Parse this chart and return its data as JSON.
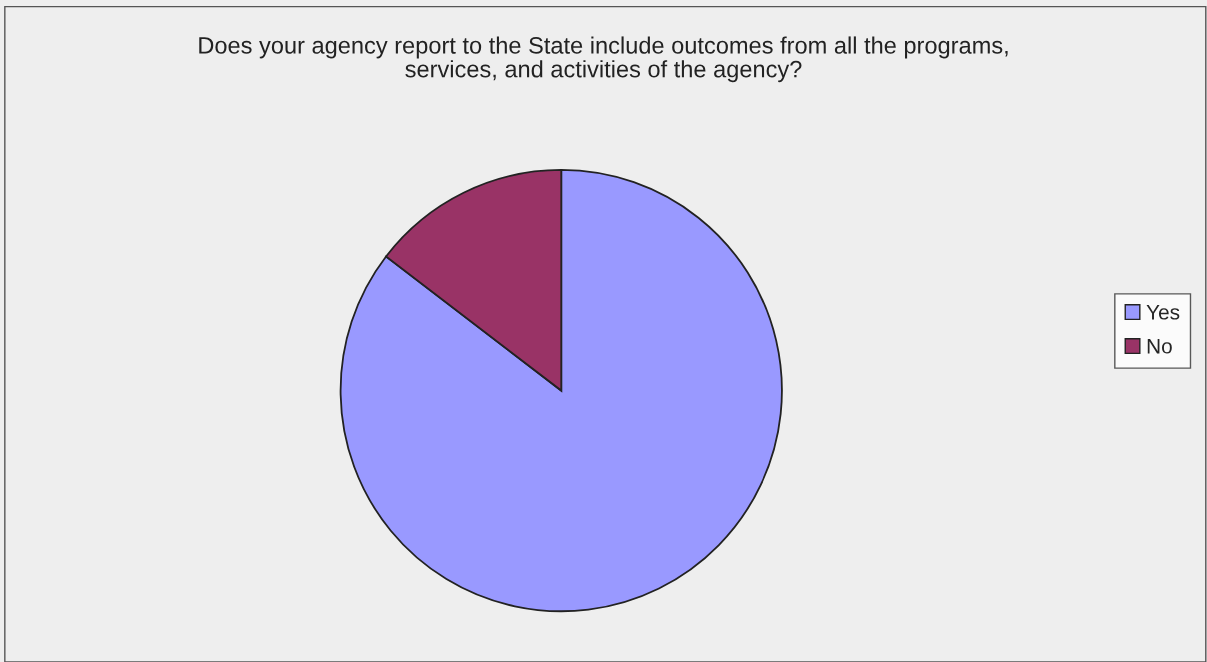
{
  "chart_data": {
    "type": "pie",
    "title": "Does your agency report to the State include outcomes from all the programs,\nservices, and activities of the agency?",
    "categories": [
      "Yes",
      "No"
    ],
    "values": [
      85.4,
      14.6
    ],
    "colors": [
      "#9999ff",
      "#993366"
    ],
    "legend": "right"
  }
}
